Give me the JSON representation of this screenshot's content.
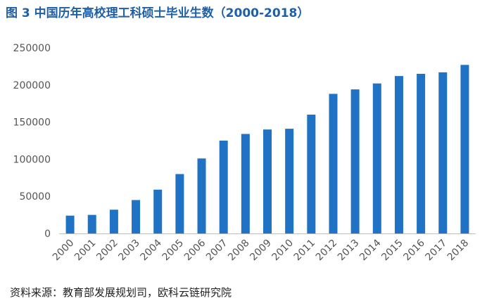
{
  "title": "图 3  中国历年高校理工科硕士毕业生数（2000-2018）",
  "source": "资料来源：教育部发展规划司，欧科云链研究院",
  "colors": {
    "bar": "#1f72c4",
    "title": "#1f5fa8",
    "axis": "#bfbfbf"
  },
  "chart_data": {
    "type": "bar",
    "title": "图 3  中国历年高校理工科硕士毕业生数（2000-2018）",
    "categories": [
      "2000",
      "2001",
      "2002",
      "2003",
      "2004",
      "2005",
      "2006",
      "2007",
      "2008",
      "2009",
      "2010",
      "2011",
      "2012",
      "2013",
      "2014",
      "2015",
      "2016",
      "2017",
      "2018"
    ],
    "values": [
      24000,
      25000,
      32000,
      45000,
      59000,
      80000,
      101000,
      125000,
      134000,
      140000,
      141000,
      160000,
      188000,
      194000,
      202000,
      212000,
      215000,
      217000,
      227000
    ],
    "ylim": [
      0,
      250000
    ],
    "yticks": [
      "0",
      "50000",
      "100000",
      "150000",
      "200000",
      "250000"
    ],
    "grid": false,
    "legend": "none"
  }
}
